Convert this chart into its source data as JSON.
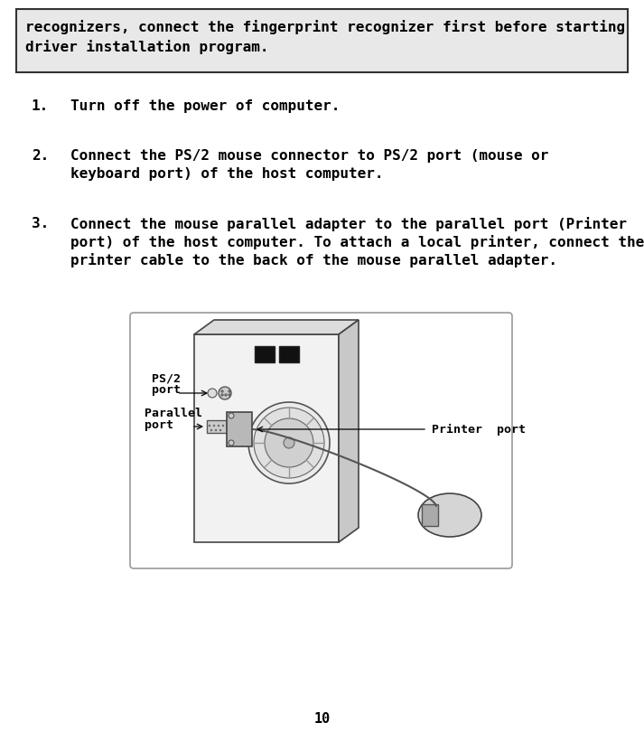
{
  "bg_color": "#ffffff",
  "box_bg_color": "#e8e8e8",
  "box_border_color": "#333333",
  "box_text_line1": "recognizers, connect the fingerprint recognizer first before starting",
  "box_text_line2": "driver installation program.",
  "item1": "Turn off the power of computer.",
  "item2_line1": "Connect the PS/2 mouse connector to PS/2 port (mouse or",
  "item2_line2": "keyboard port) of the host computer.",
  "item3_line1": "Connect the mouse parallel adapter to the parallel port (Printer",
  "item3_line2": "port) of the host computer. To attach a local printer, connect the",
  "item3_line3": "printer cable to the back of the mouse parallel adapter.",
  "page_number": "10",
  "font_size": 11.5,
  "label_font_size": 9.5
}
